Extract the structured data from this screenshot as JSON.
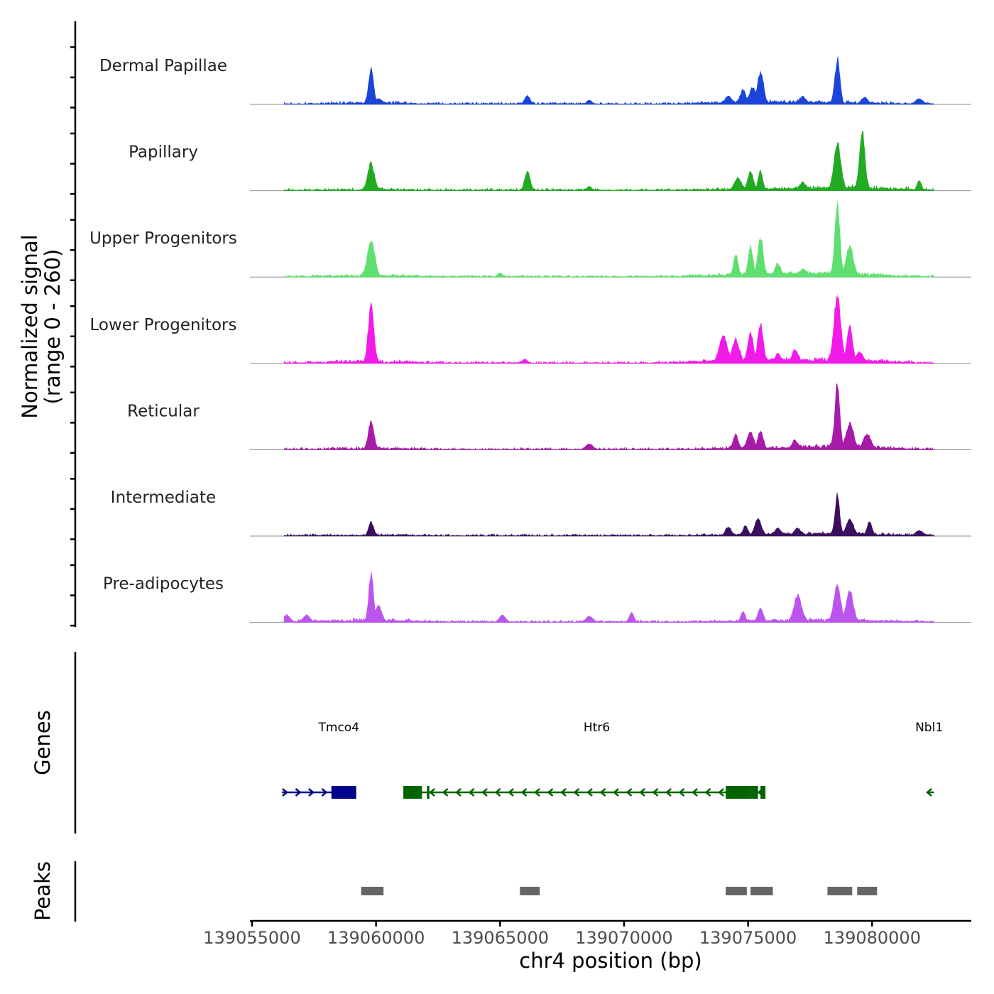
{
  "chart_data": {
    "type": "area",
    "title": "",
    "ylabel": "Normalized signal\n(range 0 - 260)",
    "ylabel_lines": [
      "Normalized signal",
      "(range 0 - 260)"
    ],
    "yrange": [
      0,
      260
    ],
    "xlabel": "chr4 position (bp)",
    "xlim": [
      139055000,
      139084000
    ],
    "data_extent": [
      139056300,
      139082500
    ],
    "xticks": [
      139055000,
      139060000,
      139065000,
      139070000,
      139075000,
      139080000
    ],
    "xtick_labels": [
      "139055000",
      "139060000",
      "139065000",
      "139070000",
      "139075000",
      "139080000"
    ],
    "series": [
      {
        "name": "Dermal Papillae",
        "color": "#1a45d8",
        "peaks": [
          [
            139059800,
            120
          ],
          [
            139060100,
            20
          ],
          [
            139066100,
            30
          ],
          [
            139068600,
            15
          ],
          [
            139074200,
            25
          ],
          [
            139074800,
            45
          ],
          [
            139075200,
            55
          ],
          [
            139075500,
            115
          ],
          [
            139077200,
            25
          ],
          [
            139078600,
            155
          ],
          [
            139079700,
            25
          ],
          [
            139081900,
            20
          ]
        ]
      },
      {
        "name": "Papillary",
        "color": "#22aa22",
        "peaks": [
          [
            139059800,
            95
          ],
          [
            139066100,
            65
          ],
          [
            139068600,
            15
          ],
          [
            139074600,
            40
          ],
          [
            139075100,
            65
          ],
          [
            139075500,
            70
          ],
          [
            139077200,
            25
          ],
          [
            139078600,
            165
          ],
          [
            139079600,
            205
          ],
          [
            139081900,
            35
          ]
        ]
      },
      {
        "name": "Upper Progenitors",
        "color": "#5fdf6f",
        "peaks": [
          [
            139059800,
            125
          ],
          [
            139065000,
            15
          ],
          [
            139074500,
            70
          ],
          [
            139075100,
            105
          ],
          [
            139075500,
            135
          ],
          [
            139076200,
            45
          ],
          [
            139077200,
            20
          ],
          [
            139078600,
            260
          ],
          [
            139079100,
            110
          ]
        ]
      },
      {
        "name": "Lower Progenitors",
        "color": "#f21ae8",
        "peaks": [
          [
            139059800,
            205
          ],
          [
            139066000,
            15
          ],
          [
            139074000,
            90
          ],
          [
            139074500,
            75
          ],
          [
            139075100,
            100
          ],
          [
            139075500,
            135
          ],
          [
            139076200,
            30
          ],
          [
            139076900,
            45
          ],
          [
            139078600,
            235
          ],
          [
            139079100,
            135
          ],
          [
            139079500,
            40
          ]
        ]
      },
      {
        "name": "Reticular",
        "color": "#a81aa8",
        "peaks": [
          [
            139059800,
            100
          ],
          [
            139068600,
            20
          ],
          [
            139074500,
            50
          ],
          [
            139075100,
            60
          ],
          [
            139075500,
            65
          ],
          [
            139076900,
            30
          ],
          [
            139078600,
            225
          ],
          [
            139079100,
            90
          ],
          [
            139079800,
            55
          ]
        ]
      },
      {
        "name": "Intermediate",
        "color": "#3b0e60",
        "peaks": [
          [
            139059800,
            50
          ],
          [
            139074200,
            30
          ],
          [
            139074900,
            35
          ],
          [
            139075400,
            60
          ],
          [
            139076200,
            25
          ],
          [
            139077000,
            25
          ],
          [
            139078600,
            140
          ],
          [
            139079100,
            55
          ],
          [
            139079900,
            50
          ],
          [
            139081900,
            20
          ]
        ]
      },
      {
        "name": "Pre-adipocytes",
        "color": "#bb55ee",
        "peaks": [
          [
            139056400,
            25
          ],
          [
            139057200,
            25
          ],
          [
            139059800,
            175
          ],
          [
            139060100,
            60
          ],
          [
            139065100,
            25
          ],
          [
            139068600,
            20
          ],
          [
            139070300,
            35
          ],
          [
            139074800,
            35
          ],
          [
            139075500,
            50
          ],
          [
            139077000,
            90
          ],
          [
            139078600,
            130
          ],
          [
            139079100,
            110
          ]
        ]
      }
    ],
    "genes_track": {
      "label": "Genes",
      "genes": [
        {
          "name": "Tmco4",
          "strand": "+",
          "color": "#00008b",
          "start": 139056200,
          "end": 139059200,
          "label_pos": 139058500,
          "exons": [
            [
              139058200,
              139059200
            ]
          ]
        },
        {
          "name": "Htr6",
          "strand": "-",
          "color": "#006400",
          "start": 139061100,
          "end": 139075700,
          "label_pos": 139068900,
          "exons": [
            [
              139061100,
              139061850
            ],
            [
              139062050,
              139062150
            ],
            [
              139074100,
              139075100
            ],
            [
              139075100,
              139075400
            ],
            [
              139075500,
              139075700
            ]
          ]
        },
        {
          "name": "Nbl1",
          "strand": "-",
          "color": "#006400",
          "start": 139082200,
          "end": 139082500,
          "label_pos": 139082300,
          "exons": []
        }
      ]
    },
    "peaks_track": {
      "label": "Peaks",
      "color": "#666666",
      "regions": [
        [
          139059400,
          139060300
        ],
        [
          139065800,
          139066600
        ],
        [
          139074100,
          139074950
        ],
        [
          139075100,
          139076000
        ],
        [
          139078200,
          139079200
        ],
        [
          139079400,
          139080200
        ]
      ]
    }
  }
}
